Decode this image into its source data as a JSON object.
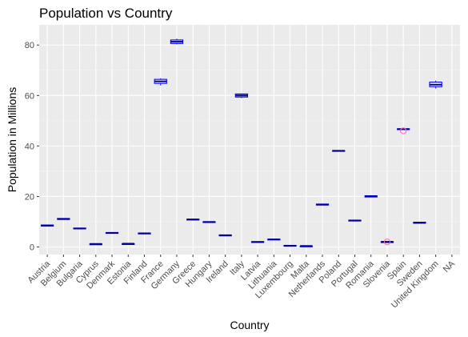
{
  "chart_data": {
    "type": "boxplot",
    "title": "Population vs Country",
    "xlabel": "Country",
    "ylabel": "Population in Millions",
    "ylim": [
      -3,
      88
    ],
    "yticks": [
      0,
      20,
      40,
      60,
      80
    ],
    "grid": true,
    "legend": "none",
    "colors": {
      "panel": "#ebebeb",
      "grid_major": "#ffffff",
      "box_stroke": "#0000ff",
      "median": "#00008b",
      "outlier": "#ff69b4"
    },
    "categories": [
      "Austria",
      "Belgium",
      "Bulgaria",
      "Cyprus",
      "Denmark",
      "Estonia",
      "Finland",
      "France",
      "Germany",
      "Greece",
      "Hungary",
      "Ireland",
      "Italy",
      "Latvia",
      "Lithuania",
      "Luxembourg",
      "Malta",
      "Netherlands",
      "Poland",
      "Portugal",
      "Romania",
      "Slovenia",
      "Spain",
      "Sweden",
      "United Kingdom",
      "NA"
    ],
    "boxes": [
      {
        "q1": 8.3,
        "median": 8.5,
        "q3": 8.7,
        "min": 8.2,
        "max": 8.8
      },
      {
        "q1": 10.9,
        "median": 11.1,
        "q3": 11.3,
        "min": 10.8,
        "max": 11.4
      },
      {
        "q1": 7.2,
        "median": 7.3,
        "q3": 7.5,
        "min": 7.1,
        "max": 7.6
      },
      {
        "q1": 1.1,
        "median": 1.2,
        "q3": 1.2,
        "min": 1.0,
        "max": 1.3
      },
      {
        "q1": 5.5,
        "median": 5.6,
        "q3": 5.7,
        "min": 5.5,
        "max": 5.8
      },
      {
        "q1": 1.3,
        "median": 1.3,
        "q3": 1.3,
        "min": 1.3,
        "max": 1.3
      },
      {
        "q1": 5.4,
        "median": 5.4,
        "q3": 5.5,
        "min": 5.3,
        "max": 5.5
      },
      {
        "q1": 64.8,
        "median": 65.6,
        "q3": 66.4,
        "min": 64.0,
        "max": 66.8
      },
      {
        "q1": 80.6,
        "median": 81.3,
        "q3": 82.0,
        "min": 80.3,
        "max": 82.5
      },
      {
        "q1": 10.7,
        "median": 10.9,
        "q3": 11.0,
        "min": 10.7,
        "max": 11.1
      },
      {
        "q1": 9.8,
        "median": 9.9,
        "q3": 10.0,
        "min": 9.8,
        "max": 10.1
      },
      {
        "q1": 4.4,
        "median": 4.6,
        "q3": 4.8,
        "min": 4.3,
        "max": 4.9
      },
      {
        "q1": 59.4,
        "median": 60.0,
        "q3": 60.6,
        "min": 59.0,
        "max": 60.8
      },
      {
        "q1": 1.9,
        "median": 2.0,
        "q3": 2.1,
        "min": 1.9,
        "max": 2.2
      },
      {
        "q1": 2.9,
        "median": 3.0,
        "q3": 3.1,
        "min": 2.8,
        "max": 3.2
      },
      {
        "q1": 0.5,
        "median": 0.5,
        "q3": 0.6,
        "min": 0.5,
        "max": 0.6
      },
      {
        "q1": 0.4,
        "median": 0.4,
        "q3": 0.4,
        "min": 0.4,
        "max": 0.4
      },
      {
        "q1": 16.6,
        "median": 16.8,
        "q3": 17.0,
        "min": 16.5,
        "max": 17.1
      },
      {
        "q1": 38.0,
        "median": 38.1,
        "q3": 38.2,
        "min": 38.0,
        "max": 38.2
      },
      {
        "q1": 10.4,
        "median": 10.5,
        "q3": 10.6,
        "min": 10.3,
        "max": 10.7
      },
      {
        "q1": 19.8,
        "median": 20.0,
        "q3": 20.3,
        "min": 19.7,
        "max": 20.5
      },
      {
        "q1": 2.0,
        "median": 2.06,
        "q3": 2.06,
        "min": 2.0,
        "max": 2.1,
        "outliers": [
          2.0
        ]
      },
      {
        "q1": 46.5,
        "median": 46.7,
        "q3": 46.8,
        "min": 46.4,
        "max": 46.9,
        "outliers": [
          46.0
        ]
      },
      {
        "q1": 9.4,
        "median": 9.6,
        "q3": 9.8,
        "min": 9.3,
        "max": 9.9
      },
      {
        "q1": 63.5,
        "median": 64.3,
        "q3": 65.3,
        "min": 62.8,
        "max": 65.9
      },
      null
    ]
  }
}
